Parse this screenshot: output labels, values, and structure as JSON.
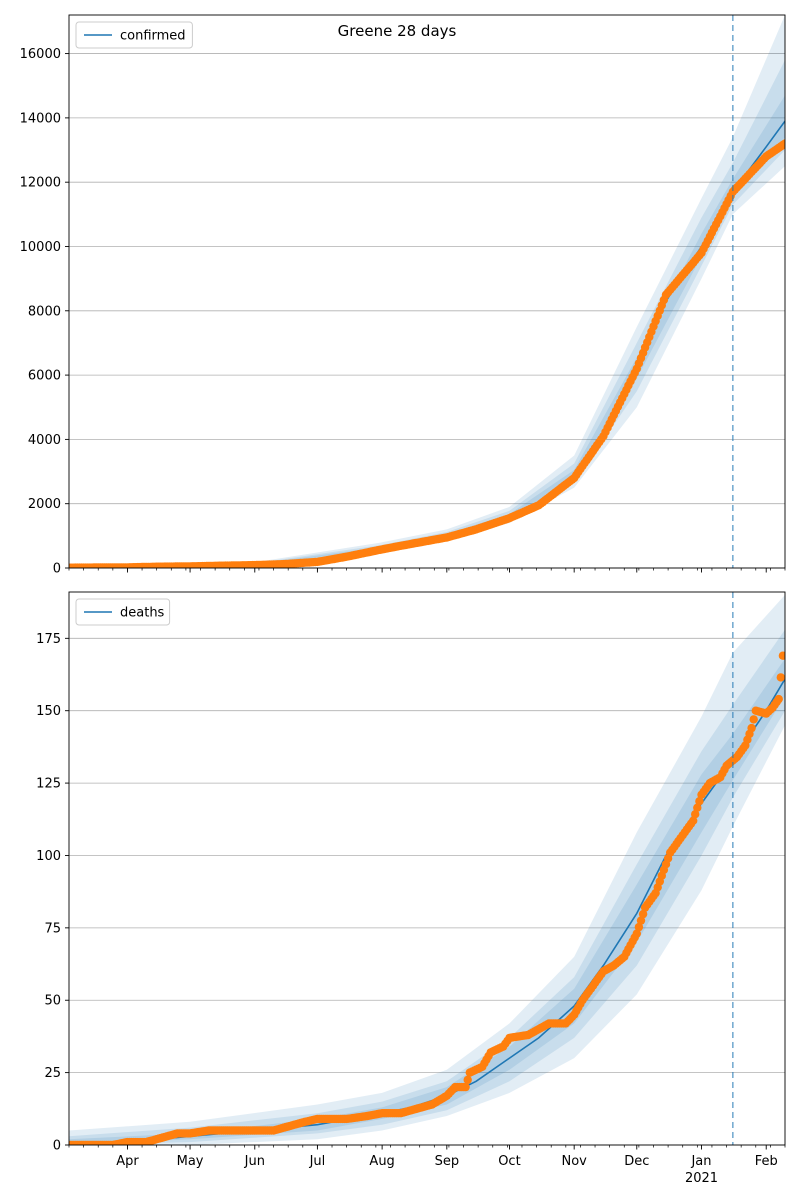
{
  "figure": {
    "title": "Greene 28 days"
  },
  "colors": {
    "model_line": "#1f77b4",
    "observed_points": "#ff7f0e",
    "band": "#1f77b4",
    "forecast_marker": "#1f77b4",
    "grid": "#b0b0b0"
  },
  "chart_data": [
    {
      "type": "line",
      "name": "confirmed-panel",
      "legend": "confirmed",
      "legend_position": "top-left",
      "grid": "y",
      "x_range": [
        "2020-03-04",
        "2021-02-10"
      ],
      "ylim": [
        0,
        17200
      ],
      "y_ticks": [
        0,
        2000,
        4000,
        6000,
        8000,
        10000,
        12000,
        14000,
        16000
      ],
      "forecast_start": "2021-01-16",
      "model_median": [
        [
          "2020-03-04",
          30
        ],
        [
          "2020-04-01",
          40
        ],
        [
          "2020-05-01",
          60
        ],
        [
          "2020-06-01",
          100
        ],
        [
          "2020-07-01",
          180
        ],
        [
          "2020-08-01",
          620
        ],
        [
          "2020-08-15",
          780
        ],
        [
          "2020-09-01",
          1000
        ],
        [
          "2020-09-15",
          1250
        ],
        [
          "2020-10-01",
          1600
        ],
        [
          "2020-10-15",
          2000
        ],
        [
          "2020-11-01",
          2900
        ],
        [
          "2020-11-15",
          4200
        ],
        [
          "2020-12-01",
          6200
        ],
        [
          "2020-12-15",
          8300
        ],
        [
          "2021-01-01",
          10000
        ],
        [
          "2021-01-16",
          11700
        ],
        [
          "2021-02-01",
          13100
        ],
        [
          "2021-02-10",
          13900
        ]
      ],
      "bands": [
        {
          "level": "outer",
          "points": [
            [
              "2020-03-04",
              0,
              80
            ],
            [
              "2020-06-01",
              40,
              180
            ],
            [
              "2020-08-01",
              500,
              800
            ],
            [
              "2020-09-01",
              850,
              1200
            ],
            [
              "2020-10-01",
              1400,
              1900
            ],
            [
              "2020-11-01",
              2500,
              3500
            ],
            [
              "2020-12-01",
              5000,
              7500
            ],
            [
              "2021-01-01",
              9000,
              11500
            ],
            [
              "2021-01-16",
              11000,
              13400
            ],
            [
              "2021-02-10",
              12500,
              17200
            ]
          ]
        },
        {
          "level": "middle",
          "points": [
            [
              "2020-03-04",
              10,
              60
            ],
            [
              "2020-06-01",
              60,
              150
            ],
            [
              "2020-08-01",
              550,
              720
            ],
            [
              "2020-09-01",
              900,
              1120
            ],
            [
              "2020-10-01",
              1480,
              1780
            ],
            [
              "2020-11-01",
              2650,
              3250
            ],
            [
              "2020-12-01",
              5500,
              7000
            ],
            [
              "2021-01-01",
              9400,
              10900
            ],
            [
              "2021-01-16",
              11300,
              12600
            ],
            [
              "2021-02-10",
              13000,
              15800
            ]
          ]
        },
        {
          "level": "inner",
          "points": [
            [
              "2020-03-04",
              20,
              45
            ],
            [
              "2020-06-01",
              80,
              125
            ],
            [
              "2020-08-01",
              590,
              660
            ],
            [
              "2020-09-01",
              950,
              1060
            ],
            [
              "2020-10-01",
              1540,
              1680
            ],
            [
              "2020-11-01",
              2780,
              3050
            ],
            [
              "2020-12-01",
              5900,
              6550
            ],
            [
              "2021-01-01",
              9700,
              10400
            ],
            [
              "2021-01-16",
              11500,
              12100
            ],
            [
              "2021-02-10",
              13400,
              14700
            ]
          ]
        }
      ],
      "observed": [
        [
          "2020-03-04",
          10
        ],
        [
          "2020-04-01",
          20
        ],
        [
          "2020-04-15",
          40
        ],
        [
          "2020-05-01",
          50
        ],
        [
          "2020-05-15",
          70
        ],
        [
          "2020-06-01",
          90
        ],
        [
          "2020-06-15",
          120
        ],
        [
          "2020-07-01",
          190
        ],
        [
          "2020-07-15",
          350
        ],
        [
          "2020-08-01",
          580
        ],
        [
          "2020-08-15",
          750
        ],
        [
          "2020-09-01",
          950
        ],
        [
          "2020-09-15",
          1200
        ],
        [
          "2020-10-01",
          1550
        ],
        [
          "2020-10-15",
          1950
        ],
        [
          "2020-11-01",
          2800
        ],
        [
          "2020-11-15",
          4100
        ],
        [
          "2020-12-01",
          6200
        ],
        [
          "2020-12-15",
          8500
        ],
        [
          "2021-01-01",
          9800
        ],
        [
          "2021-01-16",
          11700
        ],
        [
          "2021-02-01",
          12800
        ],
        [
          "2021-02-10",
          13200
        ]
      ]
    },
    {
      "type": "line",
      "name": "deaths-panel",
      "legend": "deaths",
      "legend_position": "top-left",
      "grid": "y",
      "x_range": [
        "2020-03-04",
        "2021-02-10"
      ],
      "ylim": [
        0,
        191
      ],
      "y_ticks": [
        0,
        25,
        50,
        75,
        100,
        125,
        150,
        175
      ],
      "forecast_start": "2021-01-16",
      "x_ticks": [
        "Apr",
        "May",
        "Jun",
        "Jul",
        "Aug",
        "Sep",
        "Oct",
        "Nov",
        "Dec",
        "Jan",
        "Feb"
      ],
      "x_tick_dates": [
        "2020-04-01",
        "2020-05-01",
        "2020-06-01",
        "2020-07-01",
        "2020-08-01",
        "2020-09-01",
        "2020-10-01",
        "2020-11-01",
        "2020-12-01",
        "2021-01-01",
        "2021-02-01"
      ],
      "x_sublabel": "2021",
      "model_median": [
        [
          "2020-03-04",
          0
        ],
        [
          "2020-04-01",
          1
        ],
        [
          "2020-05-01",
          3
        ],
        [
          "2020-06-01",
          5
        ],
        [
          "2020-07-01",
          7
        ],
        [
          "2020-08-01",
          11
        ],
        [
          "2020-08-15",
          13
        ],
        [
          "2020-09-01",
          17
        ],
        [
          "2020-09-15",
          22
        ],
        [
          "2020-10-01",
          30
        ],
        [
          "2020-10-15",
          37
        ],
        [
          "2020-11-01",
          48
        ],
        [
          "2020-11-15",
          62
        ],
        [
          "2020-12-01",
          80
        ],
        [
          "2020-12-15",
          100
        ],
        [
          "2021-01-01",
          118
        ],
        [
          "2021-01-16",
          133
        ],
        [
          "2021-02-01",
          150
        ],
        [
          "2021-02-10",
          161
        ]
      ],
      "bands": [
        {
          "level": "outer",
          "points": [
            [
              "2020-03-04",
              0,
              5
            ],
            [
              "2020-05-01",
              0,
              8
            ],
            [
              "2020-07-01",
              2,
              14
            ],
            [
              "2020-08-01",
              5,
              18
            ],
            [
              "2020-09-01",
              10,
              26
            ],
            [
              "2020-10-01",
              18,
              42
            ],
            [
              "2020-11-01",
              30,
              65
            ],
            [
              "2020-12-01",
              52,
              108
            ],
            [
              "2021-01-01",
              88,
              148
            ],
            [
              "2021-01-16",
              110,
              170
            ],
            [
              "2021-02-10",
              145,
              190
            ]
          ]
        },
        {
          "level": "middle",
          "points": [
            [
              "2020-03-04",
              0,
              3
            ],
            [
              "2020-05-01",
              1,
              6
            ],
            [
              "2020-07-01",
              4,
              11
            ],
            [
              "2020-08-01",
              7,
              15
            ],
            [
              "2020-09-01",
              12,
              22
            ],
            [
              "2020-10-01",
              22,
              37
            ],
            [
              "2020-11-01",
              37,
              58
            ],
            [
              "2020-12-01",
              62,
              97
            ],
            [
              "2021-01-01",
              100,
              136
            ],
            [
              "2021-01-16",
              120,
              152
            ],
            [
              "2021-02-10",
              150,
              178
            ]
          ]
        },
        {
          "level": "inner",
          "points": [
            [
              "2020-03-04",
              0,
              2
            ],
            [
              "2020-05-01",
              2,
              4
            ],
            [
              "2020-07-01",
              5,
              9
            ],
            [
              "2020-08-01",
              9,
              13
            ],
            [
              "2020-09-01",
              14,
              20
            ],
            [
              "2020-10-01",
              26,
              34
            ],
            [
              "2020-11-01",
              42,
              54
            ],
            [
              "2020-12-01",
              70,
              90
            ],
            [
              "2021-01-01",
              108,
              128
            ],
            [
              "2021-01-16",
              126,
              142
            ],
            [
              "2021-02-10",
              155,
              168
            ]
          ]
        }
      ],
      "observed": [
        [
          "2020-03-04",
          0
        ],
        [
          "2020-03-25",
          0
        ],
        [
          "2020-04-01",
          1
        ],
        [
          "2020-04-10",
          1
        ],
        [
          "2020-04-15",
          2
        ],
        [
          "2020-04-20",
          3
        ],
        [
          "2020-04-25",
          4
        ],
        [
          "2020-05-01",
          4
        ],
        [
          "2020-05-10",
          5
        ],
        [
          "2020-05-20",
          5
        ],
        [
          "2020-06-01",
          5
        ],
        [
          "2020-06-10",
          5
        ],
        [
          "2020-06-15",
          6
        ],
        [
          "2020-06-25",
          8
        ],
        [
          "2020-07-01",
          9
        ],
        [
          "2020-07-15",
          9
        ],
        [
          "2020-07-25",
          10
        ],
        [
          "2020-08-01",
          11
        ],
        [
          "2020-08-10",
          11
        ],
        [
          "2020-08-15",
          12
        ],
        [
          "2020-08-25",
          14
        ],
        [
          "2020-09-01",
          17
        ],
        [
          "2020-09-05",
          20
        ],
        [
          "2020-09-10",
          20
        ],
        [
          "2020-09-12",
          25
        ],
        [
          "2020-09-18",
          27
        ],
        [
          "2020-09-22",
          32
        ],
        [
          "2020-09-28",
          34
        ],
        [
          "2020-10-01",
          37
        ],
        [
          "2020-10-10",
          38
        ],
        [
          "2020-10-15",
          40
        ],
        [
          "2020-10-20",
          42
        ],
        [
          "2020-10-28",
          42
        ],
        [
          "2020-11-01",
          45
        ],
        [
          "2020-11-05",
          50
        ],
        [
          "2020-11-10",
          55
        ],
        [
          "2020-11-15",
          60
        ],
        [
          "2020-11-20",
          62
        ],
        [
          "2020-11-25",
          65
        ],
        [
          "2020-12-01",
          73
        ],
        [
          "2020-12-05",
          82
        ],
        [
          "2020-12-10",
          87
        ],
        [
          "2020-12-15",
          97
        ],
        [
          "2020-12-17",
          101
        ],
        [
          "2020-12-22",
          106
        ],
        [
          "2020-12-28",
          112
        ],
        [
          "2021-01-01",
          121
        ],
        [
          "2021-01-05",
          125
        ],
        [
          "2021-01-10",
          127
        ],
        [
          "2021-01-13",
          131
        ],
        [
          "2021-01-18",
          134
        ],
        [
          "2021-01-22",
          138
        ],
        [
          "2021-01-25",
          144
        ],
        [
          "2021-01-27",
          150
        ],
        [
          "2021-02-01",
          149
        ],
        [
          "2021-02-04",
          151
        ],
        [
          "2021-02-07",
          154
        ],
        [
          "2021-02-09",
          169
        ]
      ]
    }
  ]
}
